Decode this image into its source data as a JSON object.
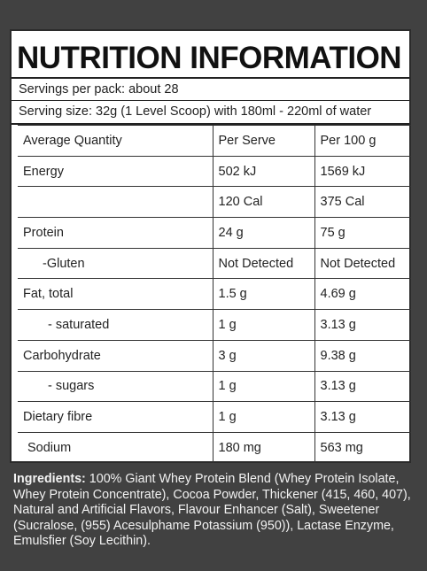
{
  "panel": {
    "title": "NUTRITION INFORMATION",
    "servings_per_pack": "Servings per pack:  about 28",
    "serving_size": "Serving size: 32g (1 Level Scoop) with 180ml - 220ml of water"
  },
  "table": {
    "headers": [
      "Average Quantity",
      "Per Serve",
      "Per 100 g"
    ],
    "rows": [
      [
        "Energy",
        "502 kJ",
        "1569 kJ"
      ],
      [
        "",
        "120 Cal",
        "375 Cal"
      ],
      [
        "Protein",
        "24 g",
        "75 g"
      ],
      [
        "-Gluten",
        "Not Detected",
        "Not Detected"
      ],
      [
        "Fat, total",
        "1.5 g",
        "4.69 g"
      ],
      [
        "- saturated",
        "1 g",
        "3.13 g"
      ],
      [
        "Carbohydrate",
        "3 g",
        "9.38 g"
      ],
      [
        "- sugars",
        "1 g",
        "3.13 g"
      ],
      [
        "Dietary fibre",
        "1 g",
        "3.13 g"
      ],
      [
        "Sodium",
        "180 mg",
        "563 mg"
      ]
    ]
  },
  "ingredients": {
    "label": "Ingredients:",
    "text": " 100% Giant Whey Protein Blend (Whey Protein Isolate, Whey Protein Concentrate), Cocoa Powder, Thickener (415, 460, 407), Natural and Artificial Flavors, Flavour Enhancer (Salt), Sweetener (Sucralose, (955) Acesulphame Potassium (950)), Lactase Enzyme, Emulsfier (Soy Lecithin)."
  },
  "colors": {
    "background": "#414141",
    "panel": "#ffffff",
    "text": "#222222",
    "ingredients_text": "#f2f2f2"
  }
}
